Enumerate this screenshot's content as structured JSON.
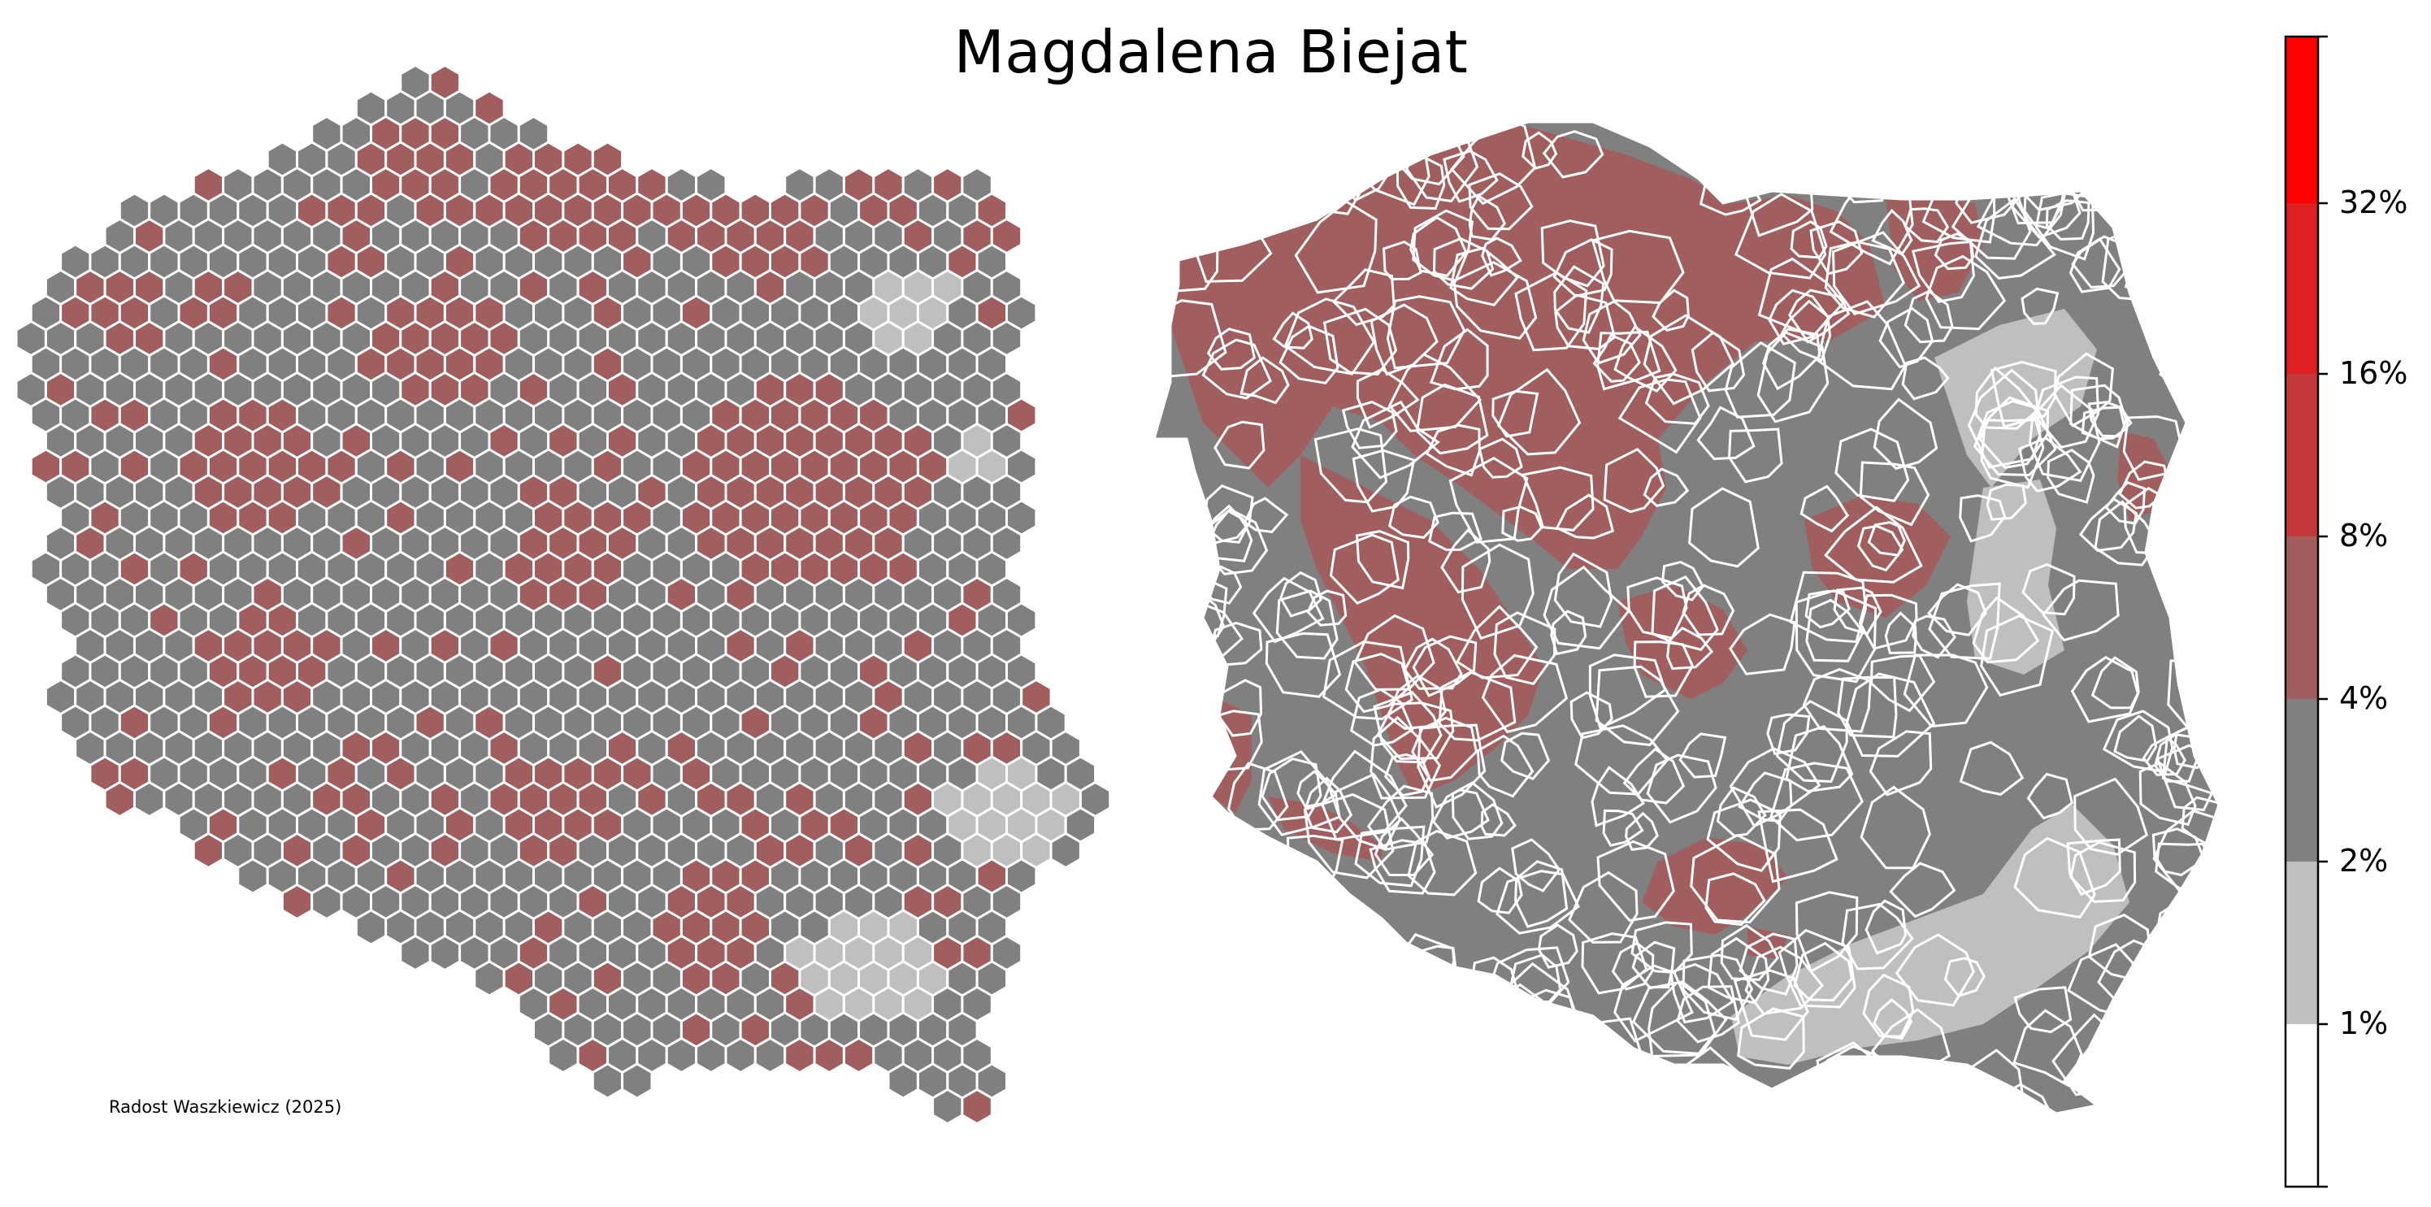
{
  "title": "Magdalena Biejat",
  "credit": "Radost Waszkiewicz (2025)",
  "colors": {
    "background": "#ffffff",
    "border": "#ffffff",
    "class_1_2": "#bfbfbf",
    "class_2_4": "#808080",
    "class_4_8": "#a05e5e",
    "class_8_16": "#c43a3a",
    "class_16_32": "#dd2020",
    "class_32_plus": "#ff0000"
  },
  "colorbar": {
    "thresholds": [
      "1%",
      "2%",
      "4%",
      "8%",
      "16%",
      "32%"
    ],
    "bins": [
      {
        "range": "<1%",
        "color": "#ffffff"
      },
      {
        "range": "1-2%",
        "color": "#bfbfbf"
      },
      {
        "range": "2-4%",
        "color": "#808080"
      },
      {
        "range": "4-8%",
        "color": "#a05e5e"
      },
      {
        "range": "8-16%",
        "color": "#c43a3a"
      },
      {
        "range": "16-32%",
        "color": "#dd2020"
      },
      {
        "range": ">32%",
        "color": "#ff0000"
      }
    ]
  },
  "legend_labels": {
    "t1": "1%",
    "t2": "2%",
    "t3": "4%",
    "t4": "8%",
    "t5": "16%",
    "t6": "32%"
  },
  "maps": [
    {
      "kind": "hexagon-cartogram",
      "subject": "Poland"
    },
    {
      "kind": "choropleth",
      "subject": "Poland"
    }
  ]
}
